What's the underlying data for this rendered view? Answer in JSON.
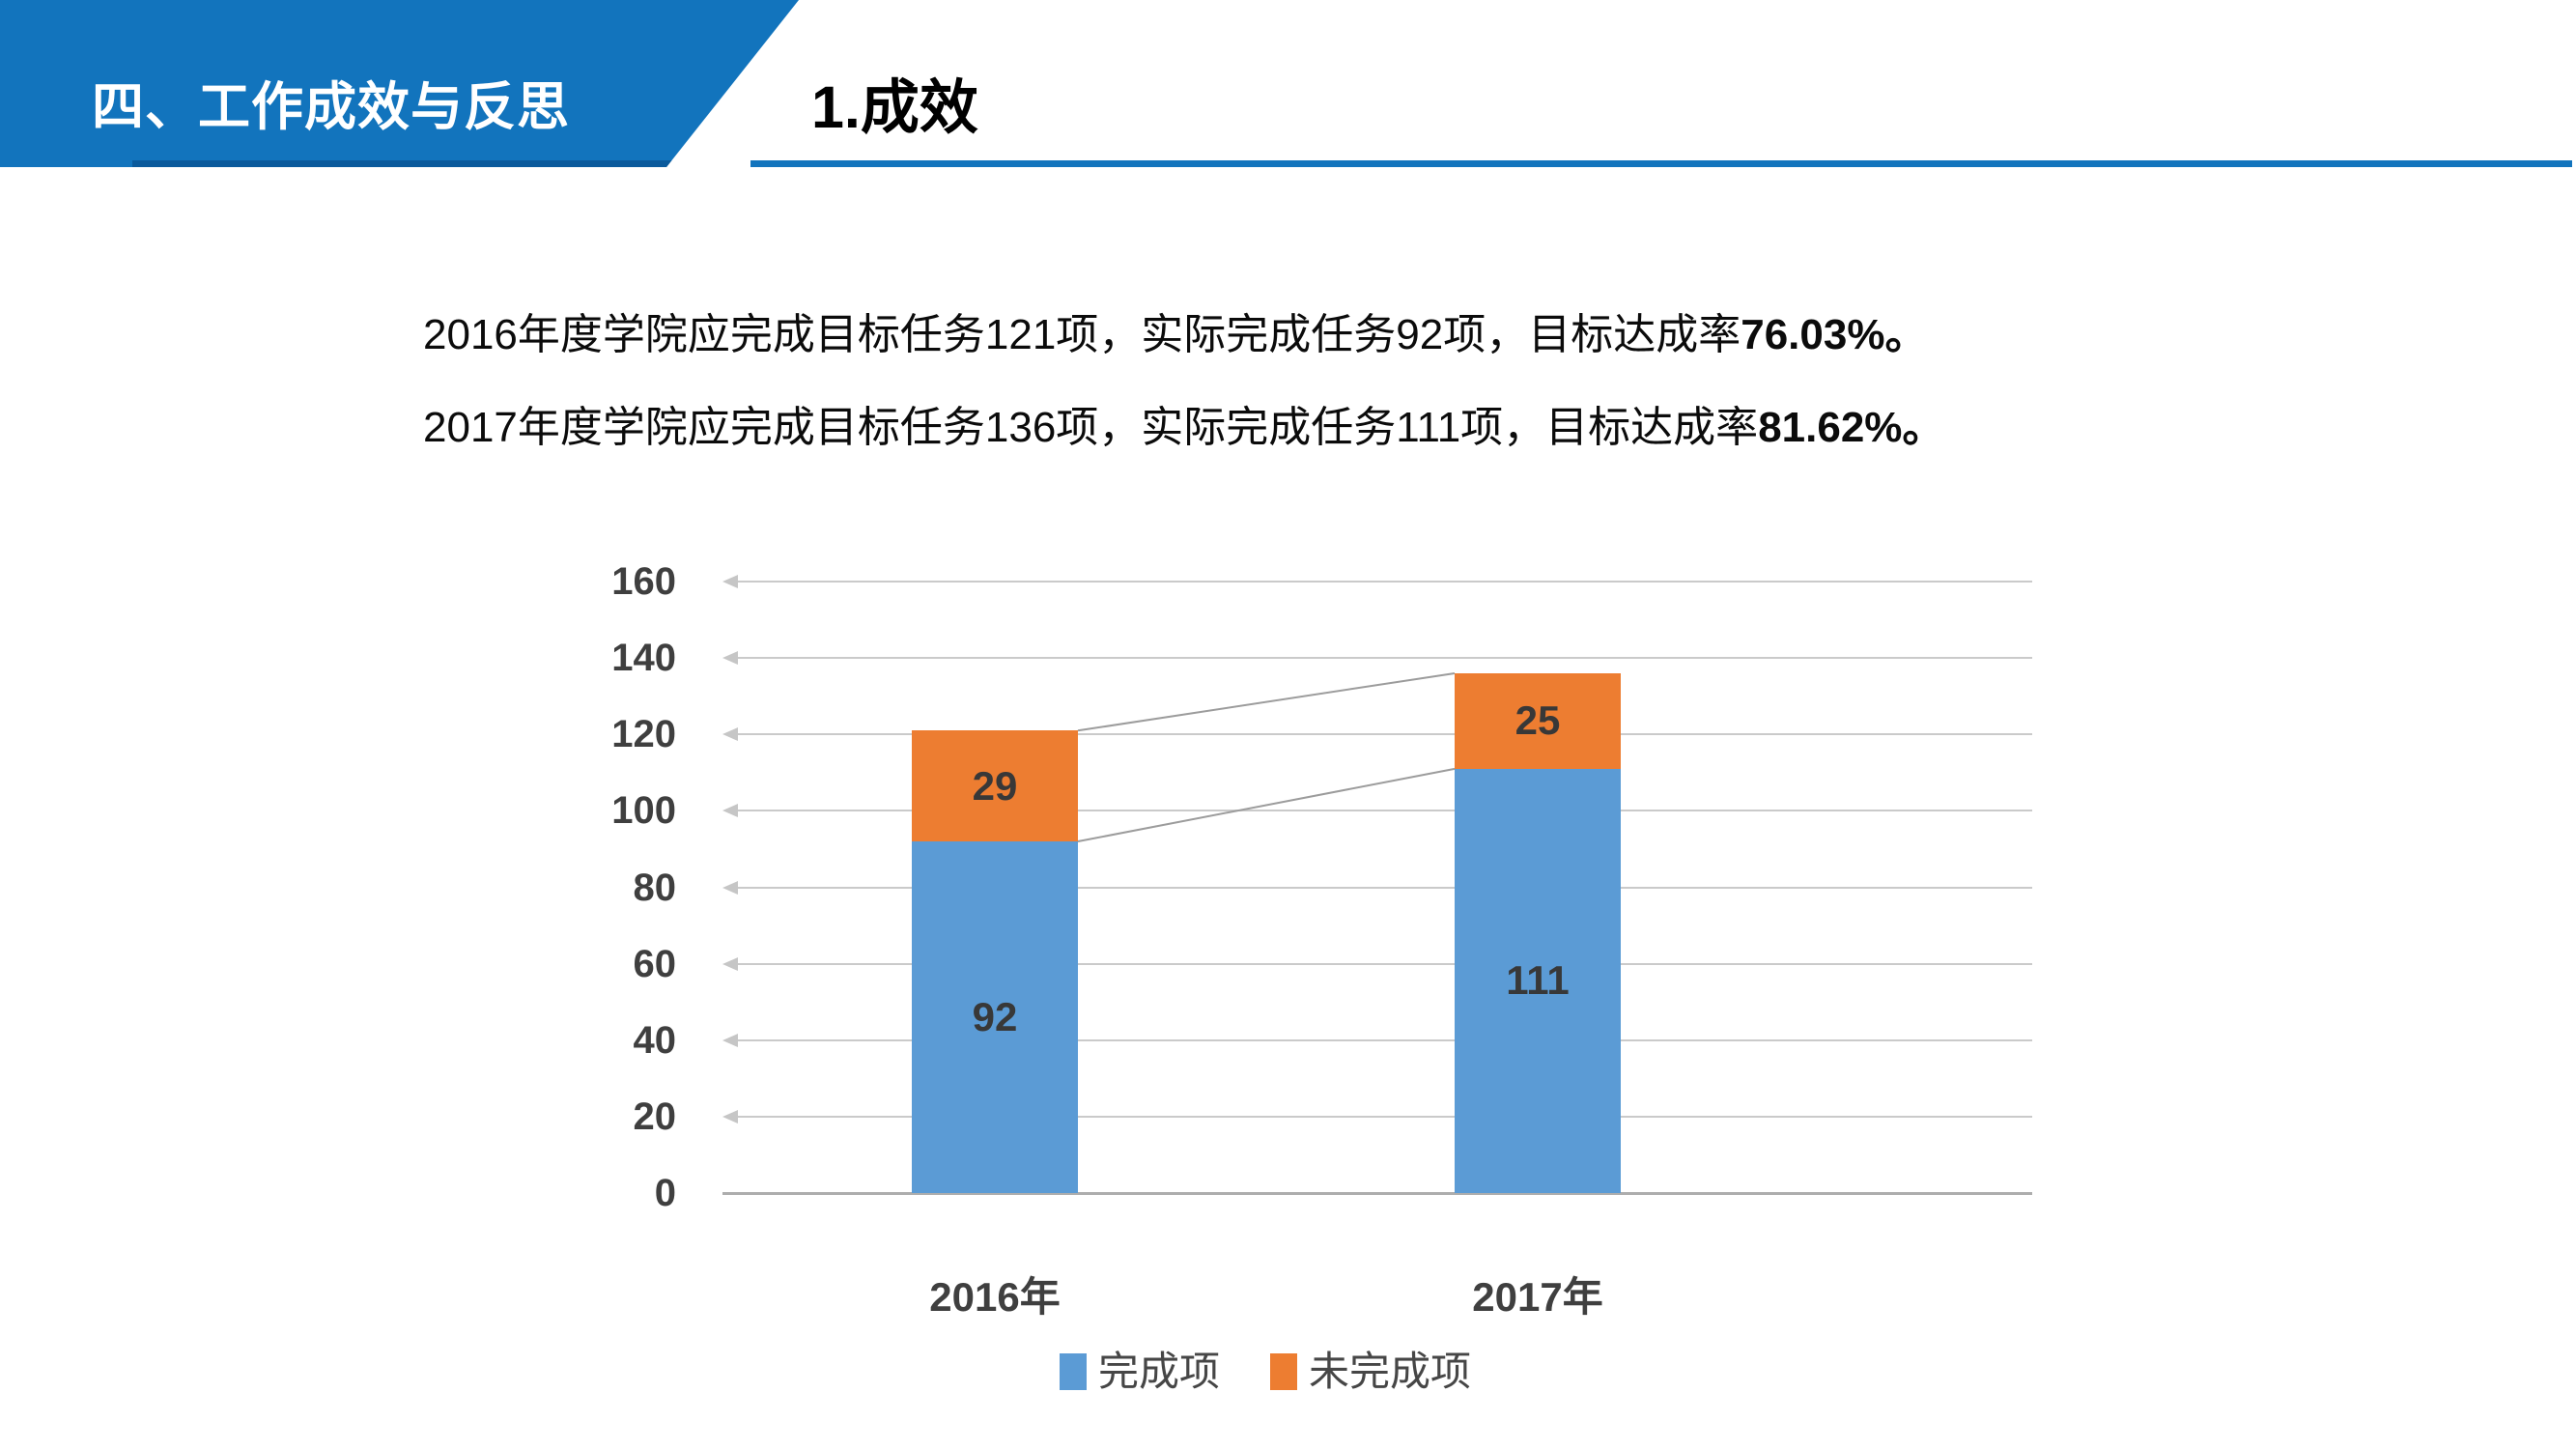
{
  "banner": {
    "section_title": "四、工作成效与反思"
  },
  "header": {
    "title": "1.成效"
  },
  "paragraphs": [
    {
      "normal": "2016年度学院应完成目标任务121项，实际完成任务92项，目标达成率",
      "bold": "76.03%。"
    },
    {
      "normal": "2017年度学院应完成目标任务136项，实际完成任务111项，目标达成率",
      "bold": "81.62%。"
    }
  ],
  "chart_data": {
    "type": "bar",
    "stacked": true,
    "categories": [
      "2016年",
      "2017年"
    ],
    "series": [
      {
        "name": "完成项",
        "color": "#5B9BD5",
        "values": [
          92,
          111
        ]
      },
      {
        "name": "未完成项",
        "color": "#ED7D31",
        "values": [
          29,
          25
        ]
      }
    ],
    "totals": [
      121,
      136
    ],
    "ylim": [
      0,
      160
    ],
    "ytick_step": 20,
    "yticks": [
      0,
      20,
      40,
      60,
      80,
      100,
      120,
      140,
      160
    ],
    "grid": true,
    "gridline_arrows": "left",
    "series_connector_lines": true,
    "legend_position": "bottom"
  },
  "colors": {
    "banner_blue": "#1274BD",
    "banner_accent": "#0A5A9C",
    "title_underline": "#1274BD",
    "gridline": "#CACACA",
    "axis_line": "#ADADAD",
    "connector_line": "#9C9C9C",
    "tick_label": "#3F3F3F",
    "data_label": "#383838",
    "legend_text": "#464646"
  }
}
